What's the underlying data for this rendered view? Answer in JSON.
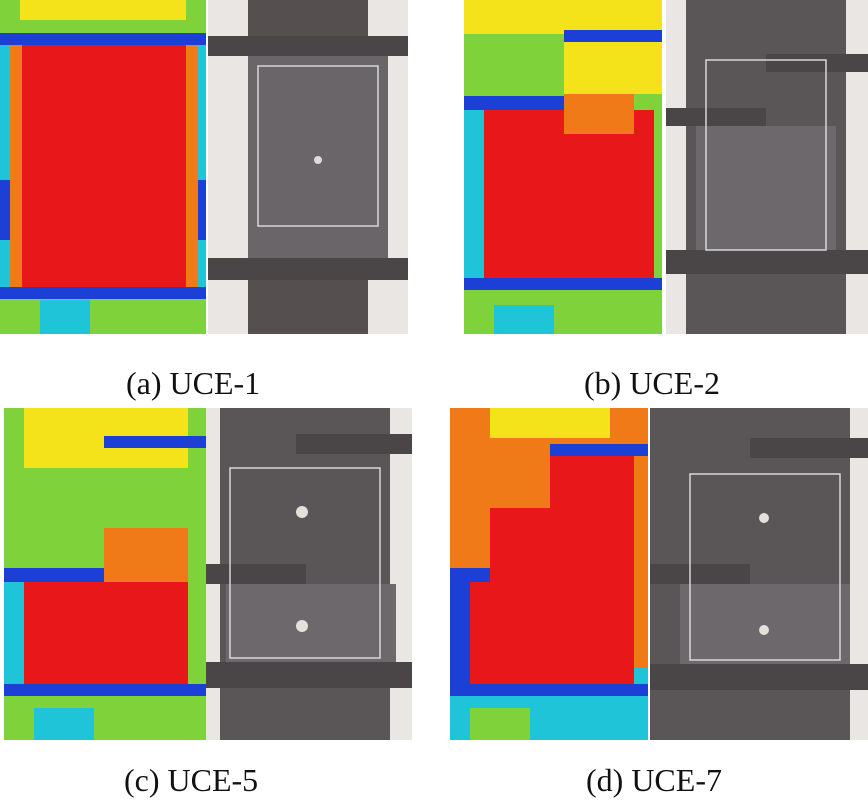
{
  "figures": [
    {
      "label": "(a) UCE-1",
      "specimen": "UCE-1"
    },
    {
      "label": "(b) UCE-2",
      "specimen": "UCE-2"
    },
    {
      "label": "(c) UCE-5",
      "specimen": "UCE-5"
    },
    {
      "label": "(d) UCE-7",
      "specimen": "UCE-7"
    }
  ],
  "colors": {
    "red": "#e8181a",
    "orange": "#f07a18",
    "yellow": "#f4e31a",
    "green": "#7fd23a",
    "cyan": "#1fc4d8",
    "blue": "#1c3fd6",
    "steel": "#4e4a4f",
    "steel_light": "#6b6669",
    "background": "#ffffff"
  },
  "icons": {
    "fe_model": "fe-contour-model-icon",
    "photo": "specimen-photo-icon"
  }
}
